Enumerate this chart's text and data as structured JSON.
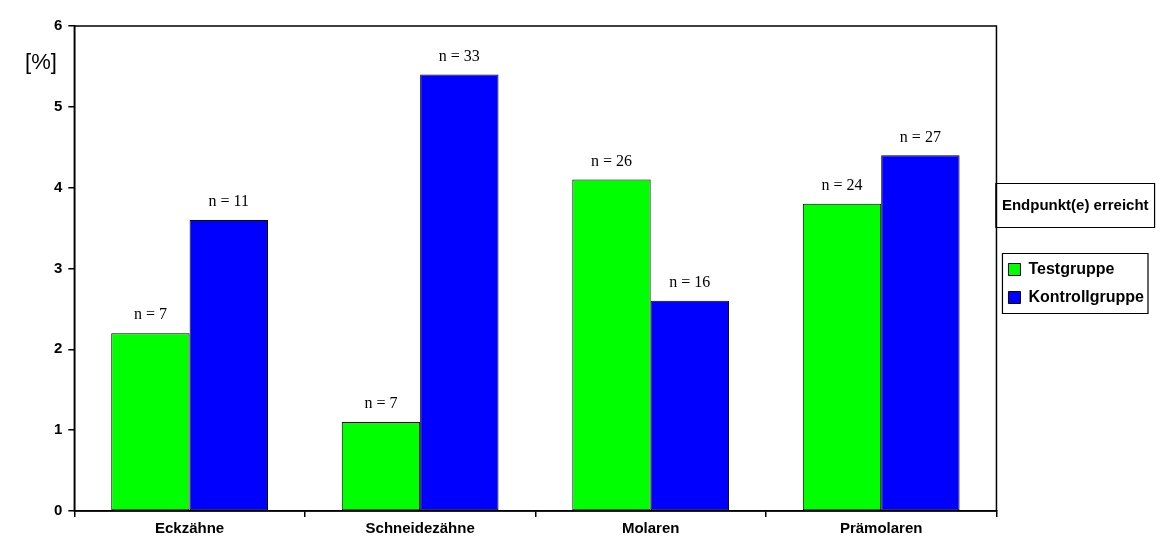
{
  "chart_data": {
    "type": "bar",
    "ylabel": "[%]",
    "legend_title": "Endpunkt(e) erreicht",
    "categories": [
      "Eckzähne",
      "Schneidezähne",
      "Molaren",
      "Prämolaren"
    ],
    "series": [
      {
        "name": "Testgruppe",
        "color": "#00ff00",
        "values": [
          2.2,
          1.1,
          4.1,
          3.8
        ]
      },
      {
        "name": "Kontrollgruppe",
        "color": "#0000ff",
        "values": [
          3.6,
          5.4,
          2.6,
          4.4
        ]
      }
    ],
    "ylim": [
      0,
      6
    ],
    "yticks": [
      0,
      1,
      2,
      3,
      4,
      5,
      6
    ],
    "grid": false,
    "legend": "right",
    "annotations": [
      {
        "text": "n = 7",
        "x": "Eckzähne",
        "y": 2.2
      },
      {
        "text": "n = 11",
        "x": "Eckzähne",
        "y": 3.6
      },
      {
        "text": "n = 7",
        "x": "Schneidezähne",
        "y": 1.1
      },
      {
        "text": "n = 33",
        "x": "Schneidezähne",
        "y": 5.4
      },
      {
        "text": "n = 26",
        "x": "Molaren",
        "y": 4.1
      },
      {
        "text": "n = 16",
        "x": "Molaren",
        "y": 2.6
      },
      {
        "text": "n = 24",
        "x": "Prämolaren",
        "y": 3.8
      },
      {
        "text": "n = 27",
        "x": "Prämolaren",
        "y": 4.4
      }
    ]
  }
}
